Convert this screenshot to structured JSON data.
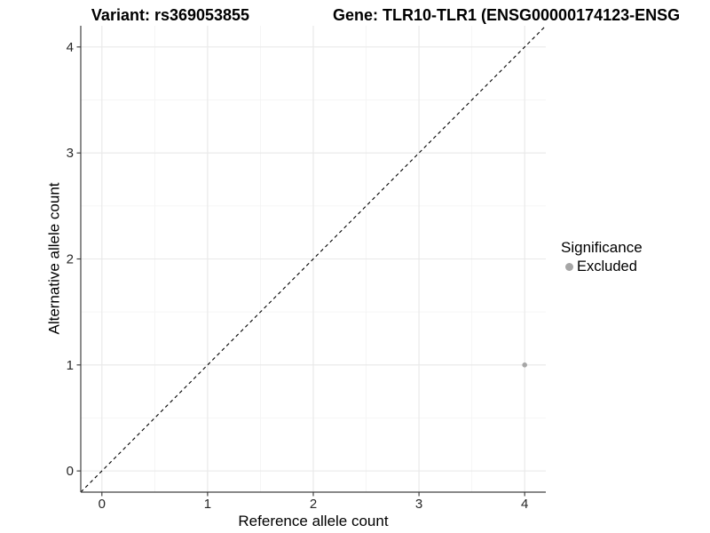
{
  "titles": {
    "variant": "Variant: rs369053855",
    "gene": "Gene: TLR10-TLR1 (ENSG00000174123-ENSG"
  },
  "legend": {
    "title": "Significance",
    "items": [
      {
        "label": "Excluded",
        "color": "#a6a6a6"
      }
    ]
  },
  "chart_data": {
    "type": "scatter",
    "title_left": "Variant: rs369053855",
    "title_right": "Gene: TLR10-TLR1 (ENSG00000174123-ENSG",
    "xlabel": "Reference allele count",
    "ylabel": "Alternative allele count",
    "xlim": [
      -0.2,
      4.2
    ],
    "ylim": [
      -0.2,
      4.2
    ],
    "x_ticks": [
      0,
      1,
      2,
      3,
      4
    ],
    "y_ticks": [
      0,
      1,
      2,
      3,
      4
    ],
    "x_minor_ticks": [
      0.5,
      1.5,
      2.5,
      3.5
    ],
    "y_minor_ticks": [
      0.5,
      1.5,
      2.5,
      3.5
    ],
    "grid": "major+minor",
    "legend_position": "right",
    "series": [
      {
        "name": "Excluded",
        "color": "#a6a6a6",
        "points": [
          {
            "x": 4,
            "y": 1
          }
        ]
      }
    ],
    "reference_line": {
      "equation": "y = x",
      "style": "dashed",
      "color": "#000000"
    }
  },
  "colors": {
    "background": "#ffffff",
    "grid_major": "#e8e8e8",
    "grid_minor": "#f3f3f3",
    "axis_line": "#404040",
    "tick_mark": "#333333",
    "tick_label": "#262626",
    "dashed_line": "#000000",
    "point": "#a6a6a6"
  }
}
